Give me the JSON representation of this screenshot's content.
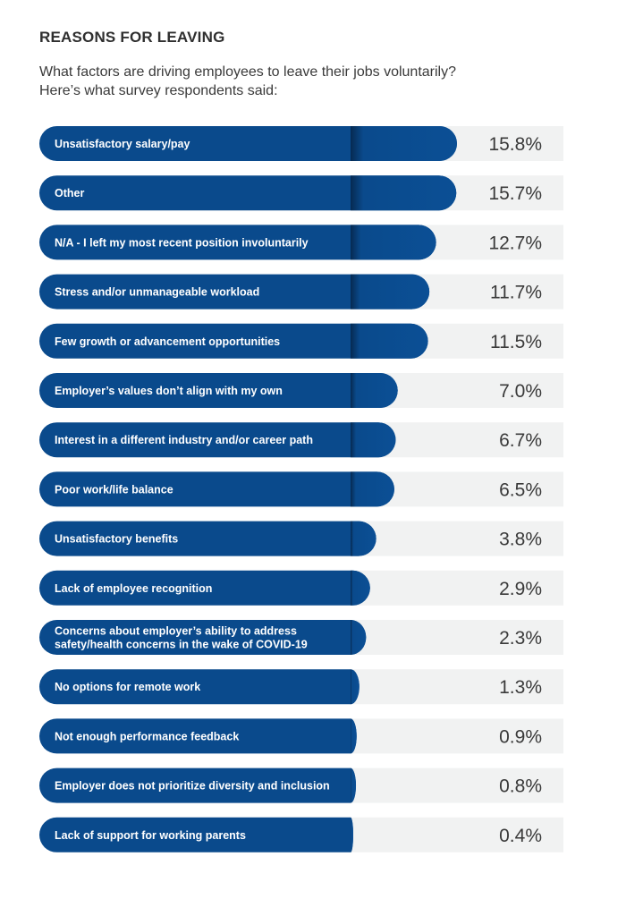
{
  "header": {
    "title": "REASONS FOR LEAVING",
    "subtitle_line1": "What factors are driving employees to leave their jobs voluntarily?",
    "subtitle_line2": "Here’s what survey respondents said:"
  },
  "colors": {
    "bar": "#0a4a8c",
    "track": "#f1f2f2",
    "value_text": "#3a3a3a"
  },
  "chart_data": {
    "type": "bar",
    "orientation": "horizontal",
    "unit": "%",
    "xlim": [
      0,
      15.8
    ],
    "categories": [
      "Unsatisfactory salary/pay",
      "Other",
      "N/A - I left my most recent position involuntarily",
      "Stress and/or unmanageable workload",
      "Few growth or advancement opportunities",
      "Employer’s values don’t align with my own",
      "Interest in a different industry and/or career path",
      "Poor work/life balance",
      "Unsatisfactory benefits",
      "Lack of employee recognition",
      [
        "Concerns about employer’s ability to address",
        "safety/health concerns in the wake of COVID-19"
      ],
      "No options for remote work",
      "Not enough performance feedback",
      "Employer does not prioritize diversity and inclusion",
      "Lack of support for working parents"
    ],
    "values": [
      15.8,
      15.7,
      12.7,
      11.7,
      11.5,
      7.0,
      6.7,
      6.5,
      3.8,
      2.9,
      2.3,
      1.3,
      0.9,
      0.8,
      0.4
    ],
    "value_labels": [
      "15.8%",
      "15.7%",
      "12.7%",
      "11.7%",
      "11.5%",
      "7.0%",
      "6.7%",
      "6.5%",
      "3.8%",
      "2.9%",
      "2.3%",
      "1.3%",
      "0.9%",
      "0.8%",
      "0.4%"
    ],
    "grid": false,
    "legend": "none"
  }
}
